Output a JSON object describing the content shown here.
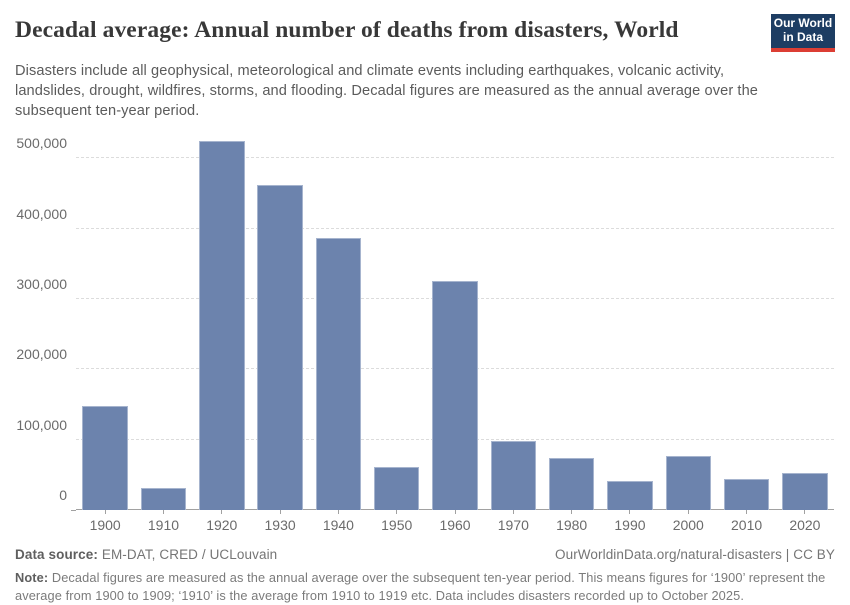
{
  "header": {
    "title": "Decadal average: Annual number of deaths from disasters, World",
    "subtitle": "Disasters include all geophysical, meteorological and climate events including earthquakes, volcanic activity, landslides, drought, wildfires, storms, and flooding. Decadal figures are measured as the annual average over the subsequent ten-year period.",
    "logo": {
      "line1": "Our World",
      "line2": "in Data",
      "bg_color": "#1d3d63",
      "accent_color": "#dc3e34"
    }
  },
  "chart_data": {
    "type": "bar",
    "title": "Decadal average: Annual number of deaths from disasters, World",
    "categories": [
      "1900",
      "1910",
      "1920",
      "1930",
      "1940",
      "1950",
      "1960",
      "1970",
      "1980",
      "1990",
      "2000",
      "2010",
      "2020"
    ],
    "values": [
      148000,
      32000,
      524000,
      462000,
      386000,
      61000,
      325000,
      98000,
      75000,
      42000,
      77000,
      44000,
      53000
    ],
    "xlabel": "",
    "ylabel": "",
    "ylim": [
      0,
      535000
    ],
    "yticks": [
      0,
      100000,
      200000,
      300000,
      400000,
      500000
    ],
    "ytick_labels": [
      "0",
      "100,000",
      "200,000",
      "300,000",
      "400,000",
      "500,000"
    ],
    "grid": "horizontal-dashed",
    "legend_position": "none",
    "bar_color": "#6c83ad"
  },
  "footer": {
    "datasource_label": "Data source:",
    "datasource_value": " EM-DAT, CRED / UCLouvain",
    "link": "OurWorldinData.org/natural-disasters | CC BY",
    "note_label": "Note:",
    "note_text": " Decadal figures are measured as the annual average over the subsequent ten-year period. This means figures for ‘1900’ represent the average from 1900 to 1909; ‘1910’ is the average from 1910 to 1919 etc. Data includes disasters recorded up to October 2025."
  }
}
